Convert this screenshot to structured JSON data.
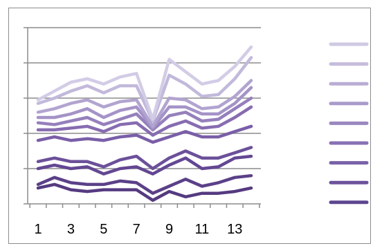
{
  "chart_data": {
    "type": "line",
    "title": "",
    "xlabel": "",
    "ylabel": "",
    "x": [
      1,
      2,
      3,
      4,
      5,
      6,
      7,
      8,
      9,
      10,
      11,
      12,
      13,
      14
    ],
    "x_tick_labels": [
      "1",
      "3",
      "5",
      "7",
      "9",
      "11",
      "13"
    ],
    "y_tick_labels": [],
    "ylim": [
      0,
      5
    ],
    "grid": "horizontal",
    "legend_placement": "right",
    "series": [
      {
        "color": "#553a80",
        "values": [
          0.45,
          0.55,
          0.4,
          0.35,
          0.4,
          0.4,
          0.4,
          0.1,
          0.35,
          0.2,
          0.3,
          0.3,
          0.35,
          0.45
        ]
      },
      {
        "color": "#5b4088",
        "values": [
          0.55,
          0.75,
          0.6,
          0.55,
          0.55,
          0.65,
          0.6,
          0.3,
          0.5,
          0.7,
          0.5,
          0.6,
          0.75,
          0.8
        ]
      },
      {
        "color": "#634793",
        "values": [
          1.0,
          1.1,
          1.0,
          1.05,
          0.85,
          1.0,
          1.05,
          0.85,
          1.1,
          1.3,
          1.0,
          1.05,
          1.3,
          1.35
        ]
      },
      {
        "color": "#6b509a",
        "values": [
          1.2,
          1.3,
          1.2,
          1.2,
          1.05,
          1.25,
          1.35,
          1.0,
          1.3,
          1.5,
          1.3,
          1.3,
          1.45,
          1.6
        ]
      },
      {
        "color": "#7a5ea8",
        "values": [
          1.8,
          1.9,
          1.8,
          1.85,
          1.8,
          1.9,
          1.95,
          1.75,
          1.9,
          2.05,
          1.9,
          1.9,
          2.05,
          2.2
        ]
      },
      {
        "color": "#876cb1",
        "values": [
          2.1,
          2.1,
          2.15,
          2.2,
          2.05,
          2.25,
          2.3,
          1.95,
          2.2,
          2.35,
          2.15,
          2.2,
          2.45,
          2.75
        ]
      },
      {
        "color": "#9580bc",
        "values": [
          2.3,
          2.25,
          2.35,
          2.45,
          2.25,
          2.4,
          2.55,
          2.1,
          2.5,
          2.6,
          2.35,
          2.4,
          2.7,
          3.0
        ]
      },
      {
        "color": "#a493c7",
        "values": [
          2.45,
          2.45,
          2.55,
          2.7,
          2.45,
          2.65,
          2.75,
          2.15,
          2.75,
          2.75,
          2.55,
          2.55,
          2.85,
          3.3
        ]
      },
      {
        "color": "#b2a4d0",
        "values": [
          2.6,
          2.7,
          2.85,
          2.95,
          2.75,
          2.9,
          2.95,
          2.2,
          3.0,
          2.95,
          2.7,
          2.75,
          3.05,
          3.5
        ]
      },
      {
        "color": "#c2b9db",
        "values": [
          2.85,
          3.0,
          3.2,
          3.35,
          3.15,
          3.35,
          3.35,
          2.35,
          3.65,
          3.4,
          3.05,
          3.1,
          3.55,
          4.15
        ]
      },
      {
        "color": "#d3cce6",
        "values": [
          2.95,
          3.2,
          3.45,
          3.55,
          3.4,
          3.6,
          3.7,
          2.4,
          4.1,
          3.75,
          3.4,
          3.5,
          3.9,
          4.45
        ]
      }
    ],
    "legend_colors": [
      "#cfc9e3",
      "#c5bddd",
      "#b9add4",
      "#a99acb",
      "#9987bf",
      "#8871b3",
      "#7a61a8",
      "#6c529c",
      "#5e4690"
    ]
  }
}
